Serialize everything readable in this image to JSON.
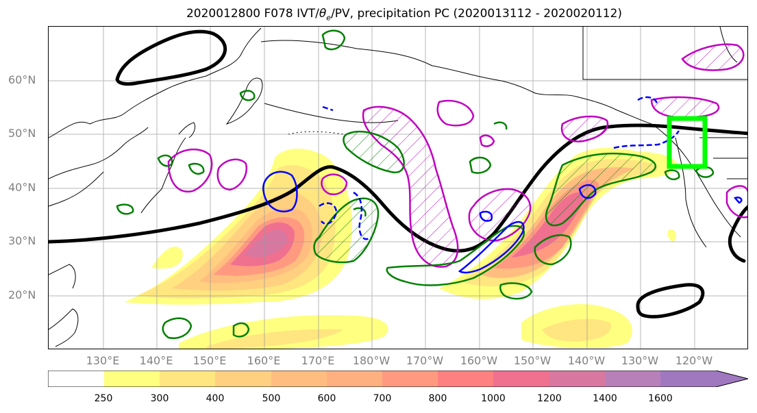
{
  "title": {
    "prefix": "2020012800 F078 IVT/",
    "theta": "θ",
    "sub": "e",
    "suffix": "/PV, precipitation PC (2020013112 - 2020020112)"
  },
  "map": {
    "lat_labels": [
      "60°N",
      "50°N",
      "40°N",
      "30°N",
      "20°N"
    ],
    "lon_labels": [
      "130°E",
      "140°E",
      "150°E",
      "160°E",
      "170°E",
      "180°W",
      "170°W",
      "160°W",
      "150°W",
      "140°W",
      "130°W",
      "120°W"
    ]
  },
  "colorbar": {
    "ticks": [
      "250",
      "300",
      "400",
      "500",
      "600",
      "700",
      "800",
      "1000",
      "1200",
      "1400",
      "1600"
    ],
    "colors": [
      "#ffffff",
      "#ffff80",
      "#ffe680",
      "#ffd080",
      "#ffbe80",
      "#ffb080",
      "#ff9a80",
      "#ff8080",
      "#f07090",
      "#d878a0",
      "#b880b8",
      "#a078c0"
    ]
  },
  "contour_colors": {
    "theta_e": "#000000",
    "ivt_precip_pos": "#008000",
    "ivt_precip_neg": "#0000ff",
    "pv": "#c000c0",
    "box": "#00ff00"
  }
}
